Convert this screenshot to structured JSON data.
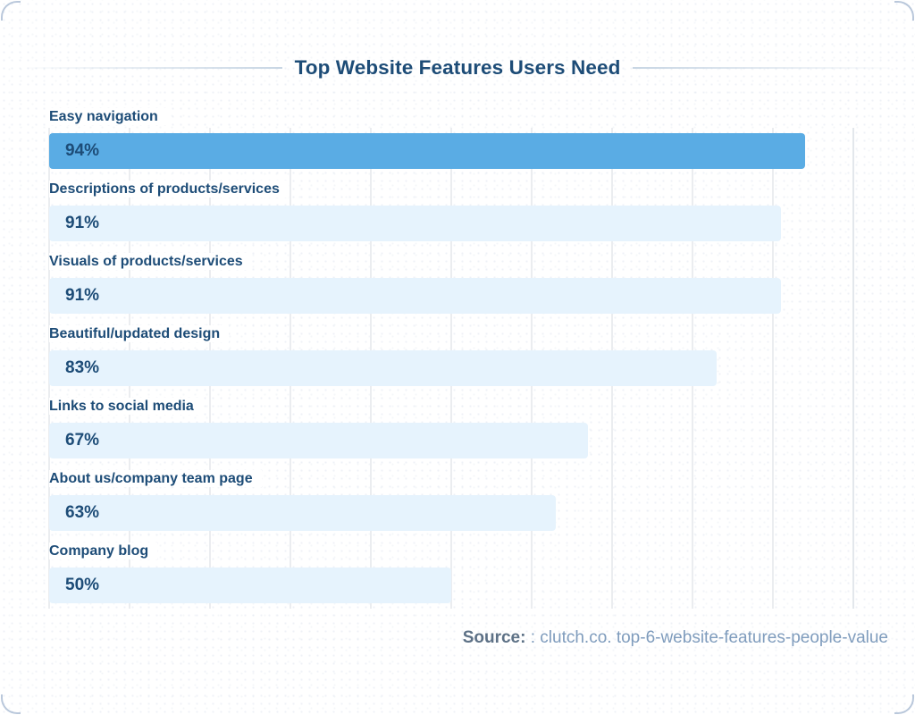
{
  "header": {
    "title": "Top Website Features Users Need"
  },
  "source": {
    "label": "Source:",
    "text": " : clutch.co. top-6-website-features-people-value"
  },
  "colors": {
    "navy": "#1d4c77",
    "bar_primary": "#5aace4",
    "bar_secondary": "#e6f3fd",
    "gridline": "#ebedf0",
    "divider": "#c8d6e4",
    "source_label": "#5d7186",
    "source_text": "#7f9cbd",
    "corner_arc": "#a9bbd3"
  },
  "chart_data": {
    "type": "bar",
    "orientation": "horizontal",
    "title": "Top Website Features Users Need",
    "categories": [
      "Easy navigation",
      "Descriptions of products/services",
      "Visuals of products/services",
      "Beautiful/updated design",
      "Links to social media",
      "About us/company team page",
      "Company blog"
    ],
    "values": [
      94,
      91,
      91,
      83,
      67,
      63,
      50
    ],
    "value_suffix": "%",
    "xlim": [
      0,
      100
    ],
    "grid_step_percent": 10,
    "grid_on": true,
    "legend": "none",
    "highlight_index": 0,
    "value_labels_inside_bars": true
  }
}
